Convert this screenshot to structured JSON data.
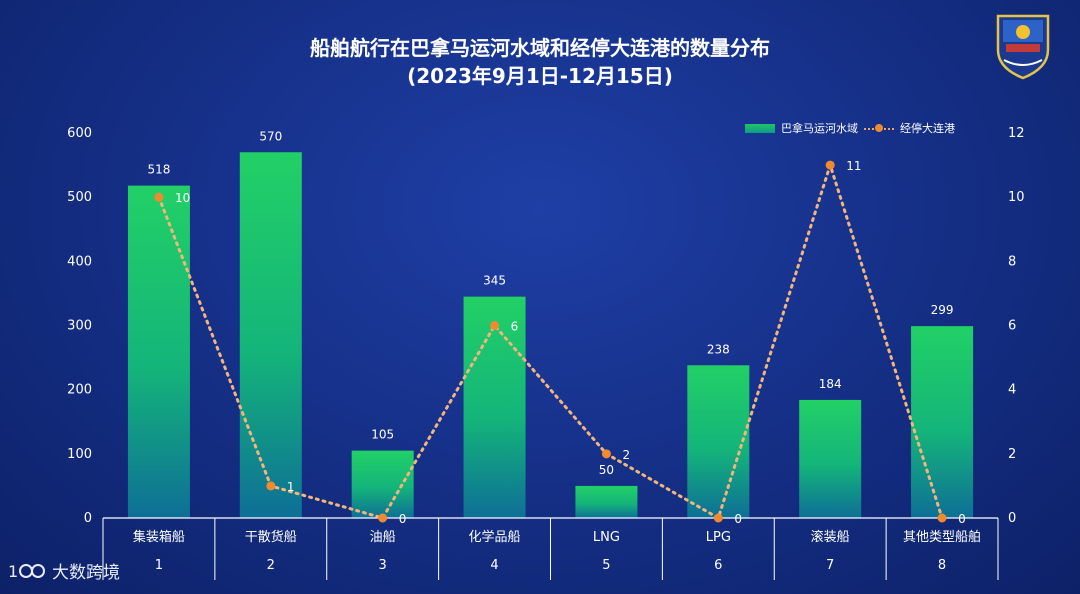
{
  "title_line1": "船舶航行在巴拿马运河水域和经停大连港的数量分布",
  "title_line2": "(2023年9月1日-12月15日)",
  "watermark": "大数跨境",
  "chart_data": {
    "type": "bar+line",
    "categories": [
      "集装箱船",
      "干散货船",
      "油船",
      "化学品船",
      "LNG",
      "LPG",
      "滚装船",
      "其他类型船舶"
    ],
    "category_index": [
      "1",
      "2",
      "3",
      "4",
      "5",
      "6",
      "7",
      "8"
    ],
    "series": [
      {
        "name": "巴拿马运河水域",
        "type": "bar",
        "axis": "left",
        "values": [
          518,
          570,
          105,
          345,
          50,
          238,
          184,
          299
        ],
        "color": "#1ecb6a"
      },
      {
        "name": "经停大连港",
        "type": "line",
        "axis": "right",
        "values": [
          10,
          1,
          0,
          6,
          2,
          0,
          11,
          0
        ],
        "color": "#f08a2e"
      }
    ],
    "y_left": {
      "min": 0,
      "max": 600,
      "ticks": [
        0,
        100,
        200,
        300,
        400,
        500,
        600
      ]
    },
    "y_right": {
      "min": 0,
      "max": 12,
      "ticks": [
        0,
        2,
        4,
        6,
        8,
        10,
        12
      ]
    },
    "legend_position": "top-right"
  }
}
